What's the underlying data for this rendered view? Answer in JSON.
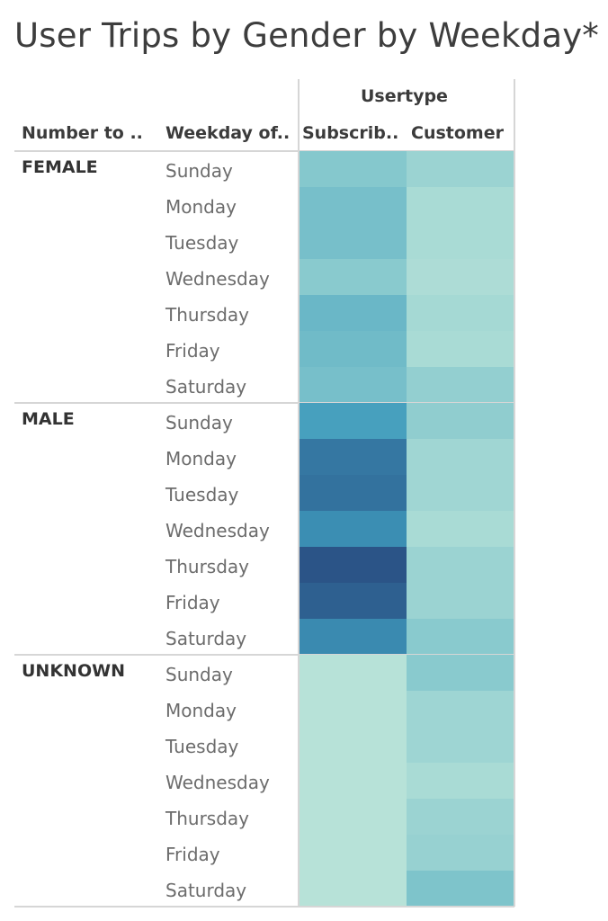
{
  "title": "User Trips by Gender by Weekday*",
  "header": {
    "column_group": "Usertype",
    "row_header_1": "Number to ..",
    "row_header_2": "Weekday of..",
    "columns": [
      "Subscrib..",
      "Customer"
    ]
  },
  "chart_data": {
    "type": "heatmap",
    "title": "User Trips by Gender by Weekday*",
    "column_group": "Usertype",
    "columns": [
      "Subscriber",
      "Customer"
    ],
    "groups": [
      {
        "name": "FEMALE",
        "rows": [
          "Sunday",
          "Monday",
          "Tuesday",
          "Wednesday",
          "Thursday",
          "Friday",
          "Saturday"
        ],
        "values": [
          [
            0.3,
            0.18
          ],
          [
            0.38,
            0.1
          ],
          [
            0.38,
            0.1
          ],
          [
            0.28,
            0.08
          ],
          [
            0.45,
            0.12
          ],
          [
            0.42,
            0.1
          ],
          [
            0.38,
            0.22
          ]
        ]
      },
      {
        "name": "MALE",
        "rows": [
          "Sunday",
          "Monday",
          "Tuesday",
          "Wednesday",
          "Thursday",
          "Friday",
          "Saturday"
        ],
        "values": [
          [
            0.65,
            0.24
          ],
          [
            0.85,
            0.15
          ],
          [
            0.87,
            0.15
          ],
          [
            0.75,
            0.1
          ],
          [
            1.0,
            0.18
          ],
          [
            0.95,
            0.18
          ],
          [
            0.77,
            0.28
          ]
        ]
      },
      {
        "name": "UNKNOWN",
        "rows": [
          "Sunday",
          "Monday",
          "Tuesday",
          "Wednesday",
          "Thursday",
          "Friday",
          "Saturday"
        ],
        "values": [
          [
            0.02,
            0.28
          ],
          [
            0.02,
            0.16
          ],
          [
            0.02,
            0.16
          ],
          [
            0.02,
            0.1
          ],
          [
            0.02,
            0.18
          ],
          [
            0.02,
            0.2
          ],
          [
            0.02,
            0.34
          ]
        ]
      }
    ]
  },
  "colors": {
    "scale_low": "#bbe4d9",
    "scale_mid": "#7cc3cb",
    "scale_mid2": "#3e9abc",
    "scale_high": "#2b5487"
  }
}
